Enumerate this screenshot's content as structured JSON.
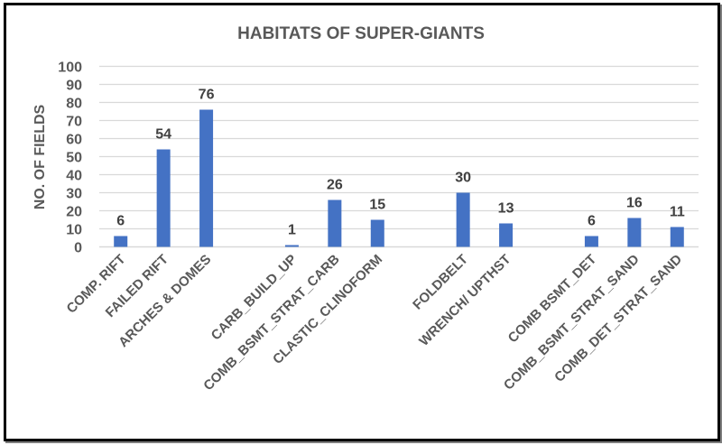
{
  "chart_data": {
    "type": "bar",
    "title": "HABITATS OF SUPER-GIANTS",
    "xlabel": "",
    "ylabel": "NO. OF FIELDS",
    "ylim": [
      0,
      100
    ],
    "yticks": [
      0,
      10,
      20,
      30,
      40,
      50,
      60,
      70,
      80,
      90,
      100
    ],
    "grid": true,
    "legend": "none",
    "bar_color": "#4472C4",
    "categories": [
      "COMP. RIFT",
      "FAILED RIFT",
      "ARCHES & DOMES",
      "",
      "CARB_BUILD_UP",
      "COMB_BSMT_STRAT_CARB",
      "CLASTIC_CLINOFORM",
      "",
      "FOLDBELT",
      "WRENCH/ UPTHST",
      "",
      "COMB BSMT_DET",
      "COMB_BSMT_STRAT_SAND",
      "COMB_DET_STRAT_SAND"
    ],
    "values": [
      6,
      54,
      76,
      null,
      1,
      26,
      15,
      null,
      30,
      13,
      null,
      6,
      16,
      11
    ],
    "data_labels": [
      "6",
      "54",
      "76",
      "",
      "1",
      "26",
      "15",
      "",
      "30",
      "13",
      "",
      "6",
      "16",
      "11"
    ]
  }
}
